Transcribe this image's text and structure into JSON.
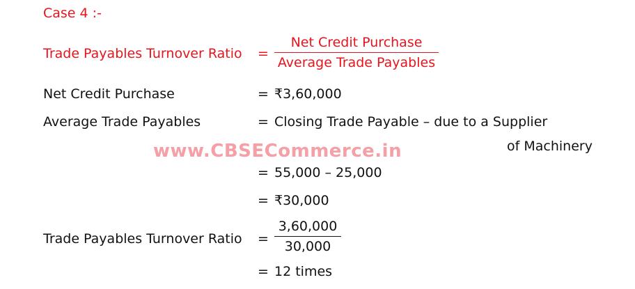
{
  "heading": "Case 4 :-",
  "watermark": "www.CBSECommerce.in",
  "formula": {
    "label": "Trade Payables Turnover Ratio",
    "eq": "=",
    "numerator": "Net Credit Purchase",
    "denominator": "Average Trade  Payables"
  },
  "lines": [
    {
      "label": "Net Credit Purchase",
      "eq": "=",
      "value": "₹3,60,000"
    },
    {
      "label": "Average Trade Payables",
      "eq": "=",
      "value": "Closing Trade Payable – due to a Supplier",
      "cont": "of Machinery"
    },
    {
      "eq": "=",
      "value": "55,000 – 25,000"
    },
    {
      "eq": "=",
      "value": "₹30,000"
    }
  ],
  "result": {
    "label": "Trade Payables Turnover Ratio",
    "eq": "=",
    "numerator": "3,60,000",
    "denominator": "30,000",
    "final_eq": "=",
    "final": "12 times"
  },
  "colors": {
    "accent": "#e8141c",
    "watermark": "#f4a0a6"
  }
}
